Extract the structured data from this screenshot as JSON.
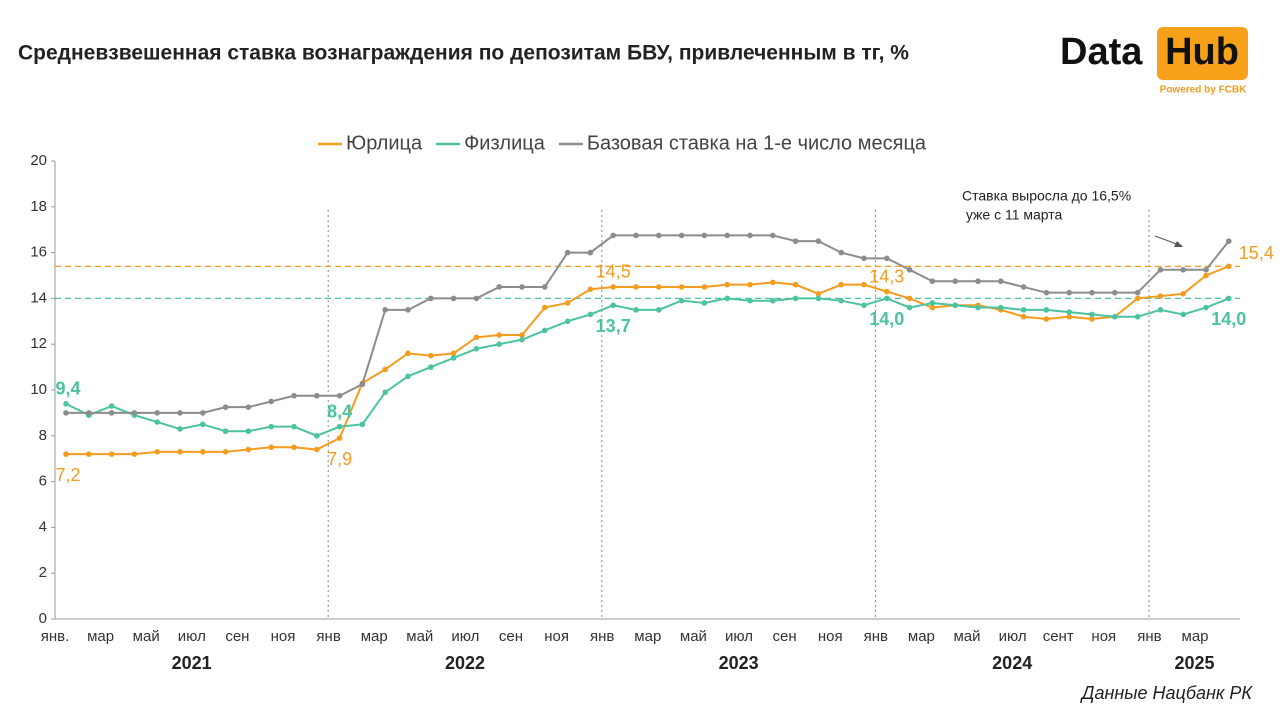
{
  "chart_data": {
    "type": "line",
    "title": "Средневзвешенная ставка вознаграждения по депозитам БВУ, привлеченным в тг, %",
    "logo": {
      "left": "Data",
      "right": "Hub",
      "tagline": "Powered by FCBK"
    },
    "source": "Данные Нацбанк РК",
    "annotation": [
      "Ставка выросла до 16,5%",
      " уже с 11 марта"
    ],
    "categories": [
      "янв.",
      null,
      "мар",
      null,
      "май",
      null,
      "июл",
      null,
      "сен",
      null,
      "ноя",
      null,
      "янв",
      null,
      "мар",
      null,
      "май",
      null,
      "июл",
      null,
      "сен",
      null,
      "ноя",
      null,
      "янв",
      null,
      "мар",
      null,
      "май",
      null,
      "июл",
      null,
      "сен",
      null,
      "ноя",
      null,
      "янв",
      null,
      "мар",
      null,
      "май",
      null,
      "июл",
      null,
      "сент",
      null,
      "ноя",
      null,
      "янв",
      null,
      "мар",
      null
    ],
    "x_groups": [
      "2021",
      "2022",
      "2023",
      "2024",
      "2025"
    ],
    "series": [
      {
        "name": "Юрлица",
        "color": "#f39c1f",
        "values": [
          7.2,
          7.2,
          7.2,
          7.2,
          7.3,
          7.3,
          7.3,
          7.3,
          7.4,
          7.5,
          7.5,
          7.4,
          7.9,
          10.3,
          10.9,
          11.6,
          11.5,
          11.6,
          12.3,
          12.4,
          12.4,
          13.6,
          13.8,
          14.4,
          14.5,
          14.5,
          14.5,
          14.5,
          14.5,
          14.6,
          14.6,
          14.7,
          14.6,
          14.2,
          14.6,
          14.6,
          14.3,
          14.0,
          13.6,
          13.7,
          13.7,
          13.5,
          13.2,
          13.1,
          13.2,
          13.1,
          13.2,
          14.0,
          14.1,
          14.2,
          15.0,
          15.4
        ],
        "value_labels": [
          "7,2",
          null,
          null,
          null,
          null,
          null,
          null,
          null,
          null,
          null,
          null,
          null,
          "7,9",
          null,
          null,
          null,
          null,
          null,
          null,
          null,
          null,
          null,
          null,
          null,
          "14,5",
          null,
          null,
          null,
          null,
          null,
          null,
          null,
          null,
          null,
          null,
          null,
          "14,3",
          null,
          null,
          null,
          null,
          null,
          null,
          null,
          null,
          null,
          null,
          null,
          null,
          null,
          null,
          "15,4"
        ]
      },
      {
        "name": "Физлица",
        "color": "#4cc3a0",
        "values": [
          9.4,
          8.9,
          9.3,
          8.9,
          8.6,
          8.3,
          8.5,
          8.2,
          8.2,
          8.4,
          8.4,
          8.0,
          8.4,
          8.5,
          9.9,
          10.6,
          11.0,
          11.4,
          11.8,
          12.0,
          12.2,
          12.6,
          13.0,
          13.3,
          13.7,
          13.5,
          13.5,
          13.9,
          13.8,
          14.0,
          13.9,
          13.9,
          14.0,
          14.0,
          13.9,
          13.7,
          14.0,
          13.6,
          13.8,
          13.7,
          13.6,
          13.6,
          13.5,
          13.5,
          13.4,
          13.3,
          13.2,
          13.2,
          13.5,
          13.3,
          13.6,
          14.0
        ],
        "value_labels": [
          "9,4",
          null,
          null,
          null,
          null,
          null,
          null,
          null,
          null,
          null,
          null,
          null,
          "8,4",
          null,
          null,
          null,
          null,
          null,
          null,
          null,
          null,
          null,
          null,
          null,
          "13,7",
          null,
          null,
          null,
          null,
          null,
          null,
          null,
          null,
          null,
          null,
          null,
          "14,0",
          null,
          null,
          null,
          null,
          null,
          null,
          null,
          null,
          null,
          null,
          null,
          null,
          null,
          null,
          "14,0"
        ]
      },
      {
        "name": "Базовая ставка на 1-е число месяца",
        "color": "#8c8c8c",
        "values": [
          9,
          9,
          9,
          9,
          9,
          9,
          9,
          9.25,
          9.25,
          9.5,
          9.75,
          9.75,
          9.75,
          10.25,
          13.5,
          13.5,
          14,
          14,
          14,
          14.5,
          14.5,
          14.5,
          16,
          16,
          16.75,
          16.75,
          16.75,
          16.75,
          16.75,
          16.75,
          16.75,
          16.75,
          16.5,
          16.5,
          16,
          15.75,
          15.75,
          15.25,
          14.75,
          14.75,
          14.75,
          14.75,
          14.5,
          14.25,
          14.25,
          14.25,
          14.25,
          14.25,
          15.25,
          15.25,
          15.25,
          16.5
        ]
      }
    ],
    "reference_lines": [
      {
        "value": 15.4,
        "color": "#f39c1f"
      },
      {
        "value": 14.0,
        "color": "#4cc3a0"
      }
    ],
    "ylim": [
      0,
      20
    ],
    "yticks": [
      0,
      2,
      4,
      6,
      8,
      10,
      12,
      14,
      16,
      18,
      20
    ],
    "grid": false,
    "legend": "top"
  }
}
